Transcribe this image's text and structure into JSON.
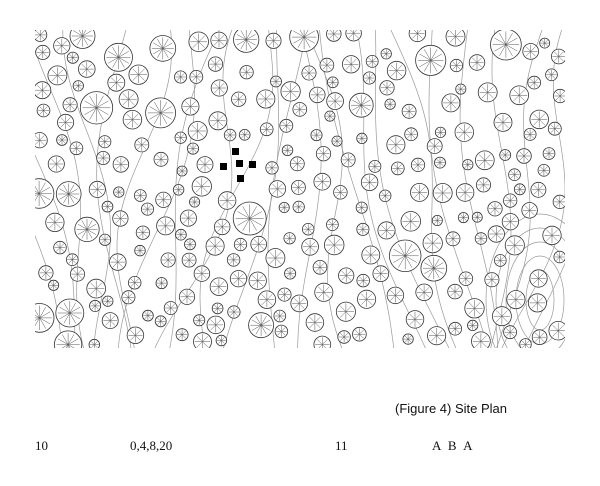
{
  "caption": "(Figure 4) Site Plan",
  "footer": {
    "items": [
      "10",
      "0,4,8,20",
      "11",
      "A B A"
    ]
  }
}
